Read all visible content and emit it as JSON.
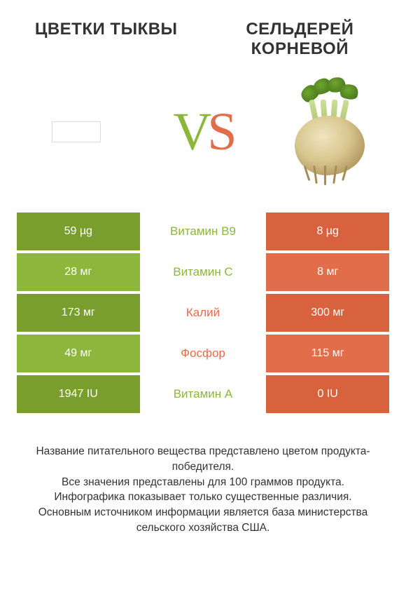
{
  "colors": {
    "left_dark": "#7a9e2e",
    "left_light": "#8cb63c",
    "right_dark": "#d9623e",
    "right_light": "#e26d4a",
    "mid_left_text": "#8cb63c",
    "mid_right_text": "#e26d4a"
  },
  "titles": {
    "left": "ЦВЕТКИ ТЫКВЫ",
    "right": "СЕЛЬДЕРЕЙ КОРНЕВОЙ"
  },
  "vs": {
    "v": "V",
    "s": "S"
  },
  "rows": [
    {
      "left": "59 µg",
      "mid": "Витамин B9",
      "right": "8 µg",
      "winner": "left"
    },
    {
      "left": "28 мг",
      "mid": "Витамин C",
      "right": "8 мг",
      "winner": "left"
    },
    {
      "left": "173 мг",
      "mid": "Калий",
      "right": "300 мг",
      "winner": "right"
    },
    {
      "left": "49 мг",
      "mid": "Фосфор",
      "right": "115 мг",
      "winner": "right"
    },
    {
      "left": "1947 IU",
      "mid": "Витамин A",
      "right": "0 IU",
      "winner": "left"
    }
  ],
  "footer": [
    "Название питательного вещества представлено цветом продукта-победителя.",
    "Все значения представлены для 100 граммов продукта.",
    "Инфографика показывает только существенные различия.",
    "Основным источником информации является база министерства сельского хозяйства США."
  ]
}
